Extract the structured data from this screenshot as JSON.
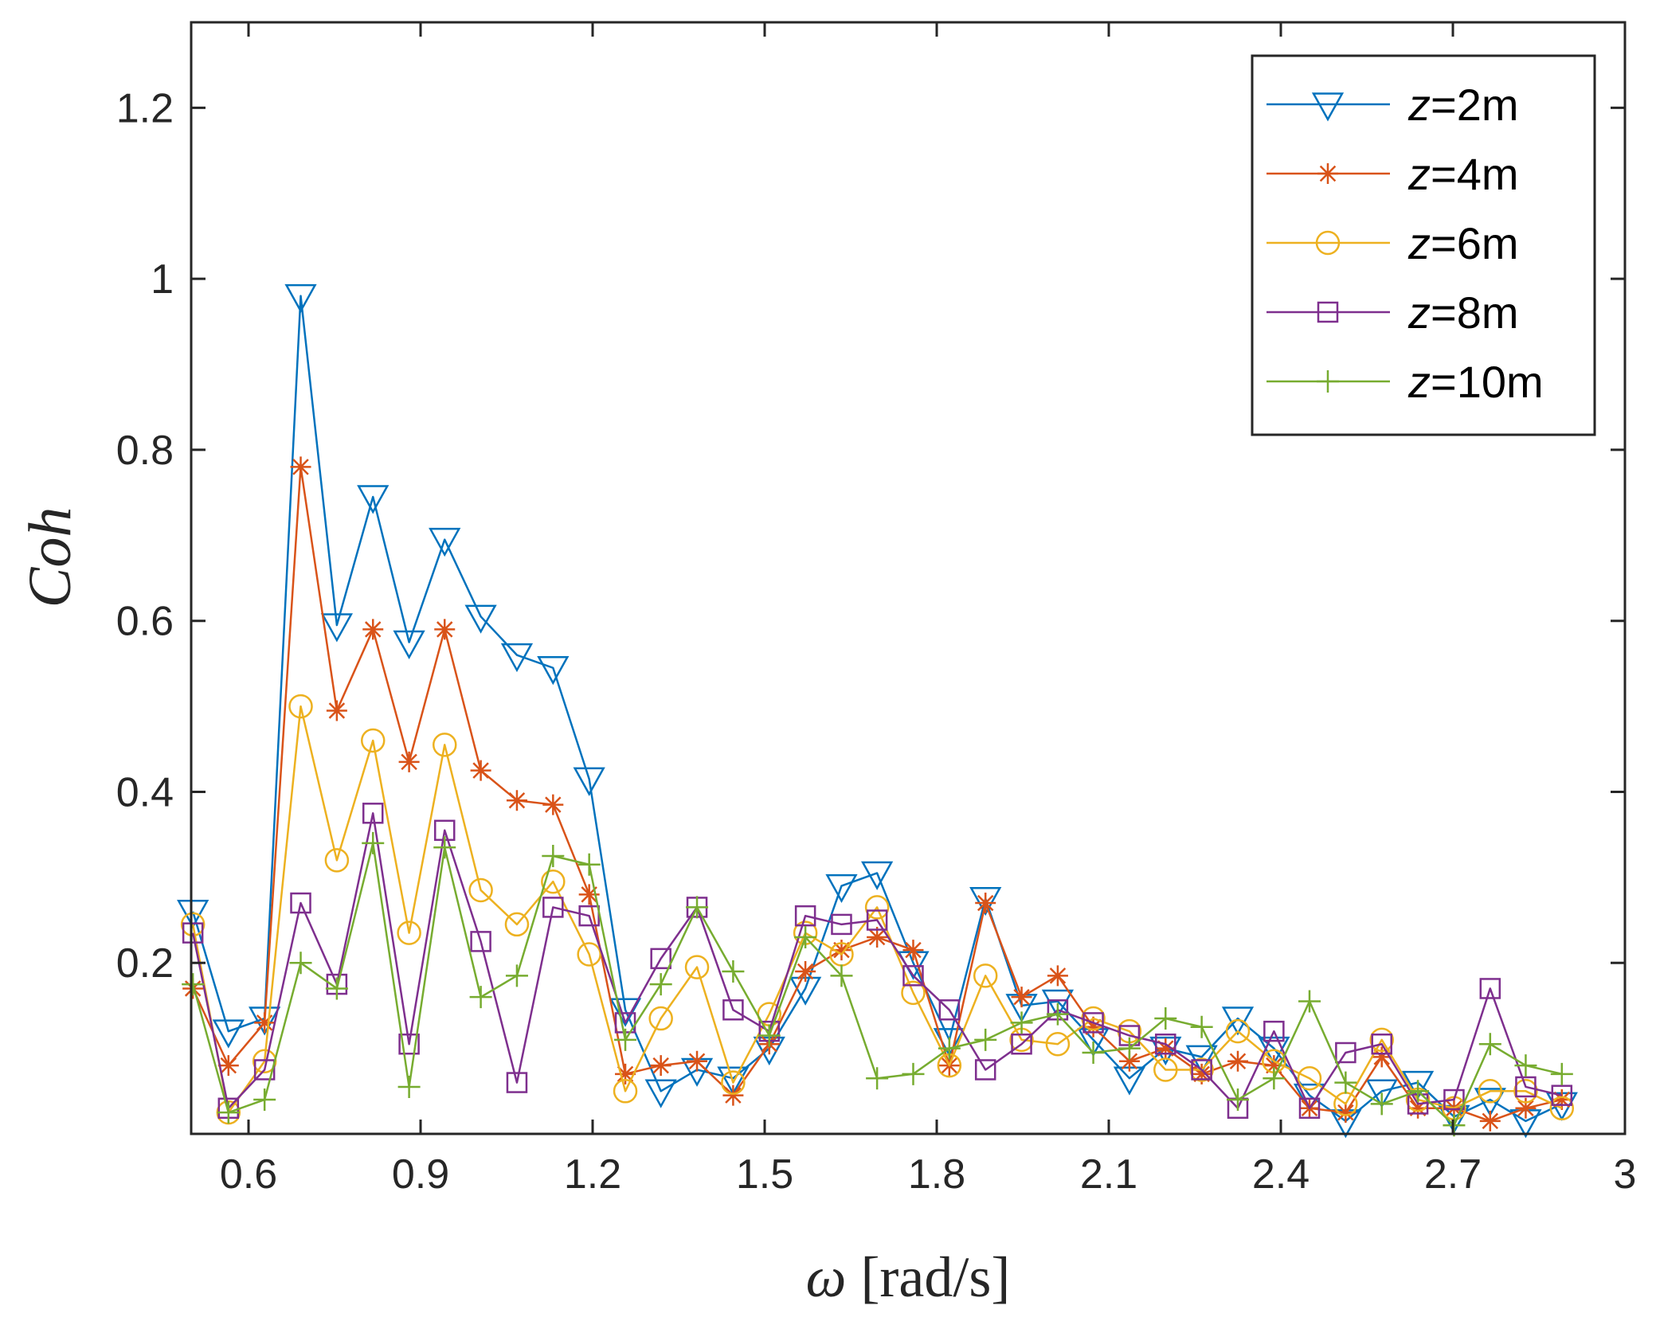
{
  "chart_data": {
    "type": "line",
    "xlabel_symbol": "ω",
    "xlabel_unit": "[rad/s]",
    "ylabel": "Coh",
    "xlim": [
      0.5,
      3.0
    ],
    "ylim": [
      0.0,
      1.3
    ],
    "x_ticks": [
      0.6,
      0.9,
      1.2,
      1.5,
      1.8,
      2.1,
      2.4,
      2.7,
      3.0
    ],
    "x_tick_labels": [
      "0.6",
      "0.9",
      "1.2",
      "1.5",
      "1.8",
      "2.1",
      "2.4",
      "2.7",
      "3"
    ],
    "y_ticks": [
      0.2,
      0.4,
      0.6,
      0.8,
      1.0,
      1.2
    ],
    "y_tick_labels": [
      "0.2",
      "0.4",
      "0.6",
      "0.8",
      "1",
      "1.2"
    ],
    "legend_position": "top-right",
    "x": [
      0.503,
      0.565,
      0.628,
      0.691,
      0.754,
      0.817,
      0.88,
      0.942,
      1.005,
      1.068,
      1.131,
      1.194,
      1.257,
      1.319,
      1.382,
      1.445,
      1.508,
      1.571,
      1.634,
      1.696,
      1.759,
      1.822,
      1.885,
      1.948,
      2.011,
      2.073,
      2.136,
      2.199,
      2.262,
      2.325,
      2.388,
      2.45,
      2.513,
      2.576,
      2.639,
      2.702,
      2.765,
      2.827,
      2.89
    ],
    "series": [
      {
        "name": "z=2m",
        "prefix": "z",
        "suffix": "=2m",
        "color": "#0072BD",
        "marker": "triangle-down",
        "values": [
          0.26,
          0.12,
          0.135,
          0.98,
          0.595,
          0.745,
          0.575,
          0.695,
          0.605,
          0.56,
          0.545,
          0.415,
          0.145,
          0.05,
          0.075,
          0.065,
          0.1,
          0.17,
          0.29,
          0.305,
          0.2,
          0.11,
          0.275,
          0.15,
          0.155,
          0.11,
          0.065,
          0.1,
          0.09,
          0.135,
          0.1,
          0.045,
          0.015,
          0.05,
          0.06,
          0.02,
          0.04,
          0.015,
          0.035
        ]
      },
      {
        "name": "z=4m",
        "prefix": "z",
        "suffix": "=4m",
        "color": "#D95319",
        "marker": "asterisk",
        "values": [
          0.17,
          0.08,
          0.13,
          0.78,
          0.495,
          0.59,
          0.435,
          0.59,
          0.425,
          0.39,
          0.385,
          0.28,
          0.07,
          0.08,
          0.085,
          0.045,
          0.105,
          0.19,
          0.215,
          0.23,
          0.215,
          0.08,
          0.27,
          0.16,
          0.185,
          0.125,
          0.085,
          0.1,
          0.07,
          0.085,
          0.08,
          0.03,
          0.025,
          0.09,
          0.03,
          0.03,
          0.015,
          0.03,
          0.04
        ]
      },
      {
        "name": "z=6m",
        "prefix": "z",
        "suffix": "=6m",
        "color": "#EDB120",
        "marker": "circle",
        "values": [
          0.245,
          0.025,
          0.085,
          0.5,
          0.32,
          0.46,
          0.235,
          0.455,
          0.285,
          0.245,
          0.295,
          0.21,
          0.05,
          0.135,
          0.195,
          0.06,
          0.14,
          0.235,
          0.21,
          0.265,
          0.165,
          0.08,
          0.185,
          0.11,
          0.105,
          0.135,
          0.12,
          0.075,
          0.075,
          0.12,
          0.085,
          0.065,
          0.035,
          0.11,
          0.04,
          0.03,
          0.05,
          0.05,
          0.03
        ]
      },
      {
        "name": "z=8m",
        "prefix": "z",
        "suffix": "=8m",
        "color": "#7E2F8E",
        "marker": "square",
        "values": [
          0.235,
          0.03,
          0.075,
          0.27,
          0.175,
          0.375,
          0.105,
          0.355,
          0.225,
          0.06,
          0.265,
          0.255,
          0.13,
          0.205,
          0.265,
          0.145,
          0.12,
          0.255,
          0.245,
          0.25,
          0.185,
          0.145,
          0.075,
          0.105,
          0.145,
          0.13,
          0.115,
          0.105,
          0.075,
          0.03,
          0.12,
          0.03,
          0.095,
          0.105,
          0.035,
          0.04,
          0.17,
          0.055,
          0.045
        ]
      },
      {
        "name": "z=10m",
        "prefix": "z",
        "suffix": "=10m",
        "color": "#77AC30",
        "marker": "plus",
        "values": [
          0.175,
          0.025,
          0.04,
          0.2,
          0.17,
          0.34,
          0.055,
          0.335,
          0.16,
          0.185,
          0.325,
          0.315,
          0.11,
          0.175,
          0.265,
          0.19,
          0.115,
          0.23,
          0.185,
          0.065,
          0.07,
          0.1,
          0.11,
          0.13,
          0.14,
          0.095,
          0.1,
          0.135,
          0.125,
          0.04,
          0.065,
          0.155,
          0.06,
          0.035,
          0.05,
          0.01,
          0.105,
          0.08,
          0.07
        ]
      }
    ]
  }
}
